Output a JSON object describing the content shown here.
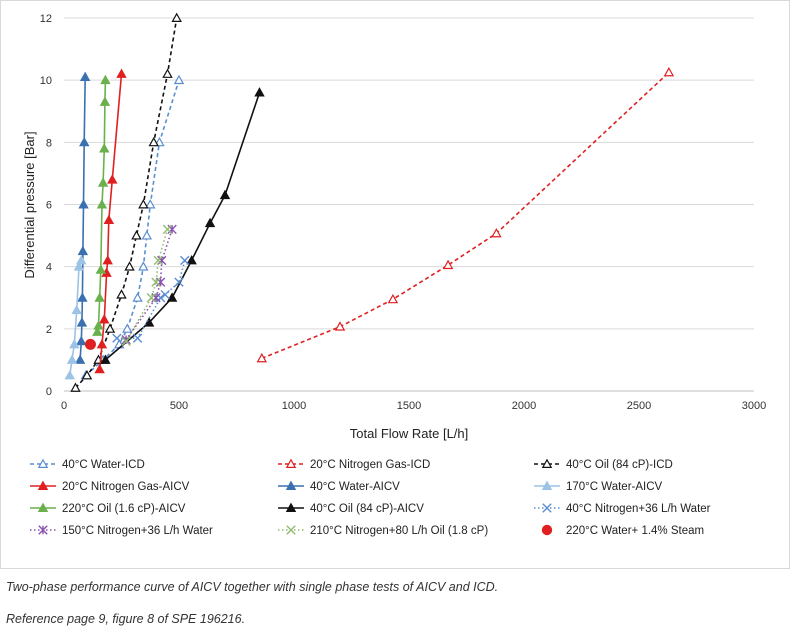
{
  "chart_data": {
    "type": "line",
    "title": "",
    "xlabel": "Total Flow Rate [L/h]",
    "ylabel": "Differential pressure [Bar]",
    "xlim": [
      0,
      3000
    ],
    "ylim": [
      0,
      12
    ],
    "x_ticks": [
      "0",
      "500",
      "1000",
      "1500",
      "2000",
      "2500",
      "3000"
    ],
    "y_ticks": [
      "0",
      "2",
      "4",
      "6",
      "8",
      "10",
      "12"
    ],
    "grid": "horizontal",
    "legend_position": "bottom",
    "series": [
      {
        "name": "40°C Water-ICD",
        "color": "#5b8ed1",
        "line": "dashed",
        "marker": "triangle-open",
        "x": [
          95,
          170,
          240,
          275,
          320,
          345,
          360,
          375,
          415,
          500
        ],
        "y": [
          0.5,
          1,
          1.5,
          2,
          3,
          4,
          5,
          6,
          8,
          10
        ]
      },
      {
        "name": "20°C Nitrogen Gas-ICD",
        "color": "#e02020",
        "line": "dashed",
        "marker": "triangle-open",
        "x": [
          860,
          1200,
          1430,
          1670,
          1880,
          2630
        ],
        "y": [
          1.05,
          2.07,
          2.95,
          4.05,
          5.07,
          10.25
        ]
      },
      {
        "name": "40°C Oil (84 cP)-ICD",
        "color": "#111111",
        "line": "dashed",
        "marker": "triangle-open",
        "x": [
          50,
          100,
          150,
          200,
          250,
          285,
          315,
          345,
          390,
          450,
          490
        ],
        "y": [
          0.1,
          0.5,
          1.0,
          2.0,
          3.1,
          4.0,
          5.0,
          6.0,
          8.0,
          10.2,
          12.0
        ]
      },
      {
        "name": "20°C Nitrogen Gas-AICV",
        "color": "#e02020",
        "line": "solid",
        "marker": "triangle-filled",
        "x": [
          155,
          165,
          175,
          185,
          190,
          195,
          210,
          250
        ],
        "y": [
          0.7,
          1.5,
          2.3,
          3.8,
          4.2,
          5.5,
          6.8,
          10.2
        ]
      },
      {
        "name": "40°C Water-AICV",
        "color": "#3a70b0",
        "line": "solid",
        "marker": "triangle-filled",
        "x": [
          70,
          75,
          78,
          80,
          82,
          85,
          88,
          92
        ],
        "y": [
          1.0,
          1.6,
          2.2,
          3.0,
          4.5,
          6.0,
          8.0,
          10.1
        ]
      },
      {
        "name": "170°C Water-AICV",
        "color": "#9cc3e6",
        "line": "solid",
        "marker": "triangle-filled",
        "x": [
          25,
          35,
          45,
          55,
          65,
          75
        ],
        "y": [
          0.5,
          1.0,
          1.5,
          2.6,
          4.0,
          4.2
        ]
      },
      {
        "name": "220°C Oil (1.6 cP)-AICV",
        "color": "#6ab04c",
        "line": "solid",
        "marker": "triangle-filled",
        "x": [
          145,
          150,
          155,
          160,
          165,
          170,
          175,
          178,
          180
        ],
        "y": [
          1.9,
          2.1,
          3.0,
          3.9,
          6.0,
          6.7,
          7.8,
          9.3,
          10.0
        ]
      },
      {
        "name": "40°C Oil (84 cP)-AICV",
        "color": "#111111",
        "line": "solid",
        "marker": "triangle-filled",
        "x": [
          180,
          370,
          470,
          555,
          635,
          700,
          850
        ],
        "y": [
          1.0,
          2.2,
          3.0,
          4.2,
          5.4,
          6.3,
          9.6
        ]
      },
      {
        "name": "40°C Nitrogen+36 L/h Water",
        "color": "#5b8ed1",
        "line": "dotted",
        "marker": "x",
        "x": [
          230,
          320,
          420,
          440,
          500,
          525
        ],
        "y": [
          1.7,
          1.7,
          3.0,
          3.1,
          3.5,
          4.2
        ]
      },
      {
        "name": "150°C Nitrogen+36 L/h Water",
        "color": "#8a50b0",
        "line": "dotted",
        "marker": "asterisk",
        "x": [
          270,
          400,
          420,
          425,
          470
        ],
        "y": [
          1.65,
          3.0,
          3.5,
          4.2,
          5.2
        ]
      },
      {
        "name": "210°C Nitrogen+80 L/h Oil (1.8 cP)",
        "color": "#8fbc6f",
        "line": "dotted",
        "marker": "x",
        "x": [
          270,
          380,
          400,
          410,
          450
        ],
        "y": [
          1.6,
          3.0,
          3.5,
          4.2,
          5.2
        ]
      },
      {
        "name": "220°C Water+ 1.4% Steam",
        "color": "#e02020",
        "line": "none",
        "marker": "circle-filled",
        "x": [
          115
        ],
        "y": [
          1.5
        ]
      }
    ]
  },
  "captions": {
    "line1": "Two-phase performance curve of AICV together with single phase tests of AICV and ICD.",
    "line2": "Reference page 9, figure 8 of SPE 196216."
  }
}
